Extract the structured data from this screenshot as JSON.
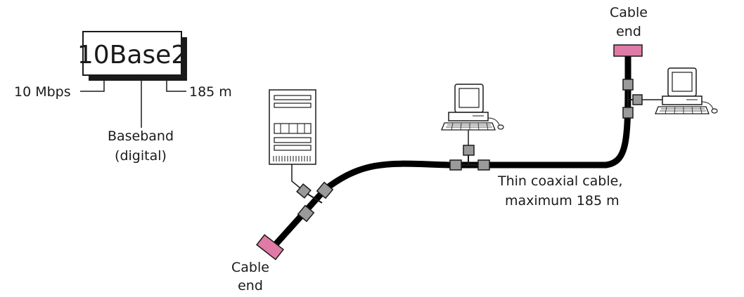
{
  "standard": {
    "name": "10Base2",
    "speed_label": "10 Mbps",
    "signal_label_line1": "Baseband",
    "signal_label_line2": "(digital)",
    "length_label": "185 m"
  },
  "cable": {
    "label_line1": "Thin coaxial cable,",
    "label_line2": "maximum 185 m"
  },
  "cable_end_left": {
    "label_line1": "Cable",
    "label_line2": "end"
  },
  "cable_end_right": {
    "label_line1": "Cable",
    "label_line2": "end"
  },
  "colors": {
    "title_color": "#e0198f",
    "terminator_fill": "#e07aa6",
    "connector_fill": "#9a9a9a",
    "cable_color": "#000000"
  }
}
